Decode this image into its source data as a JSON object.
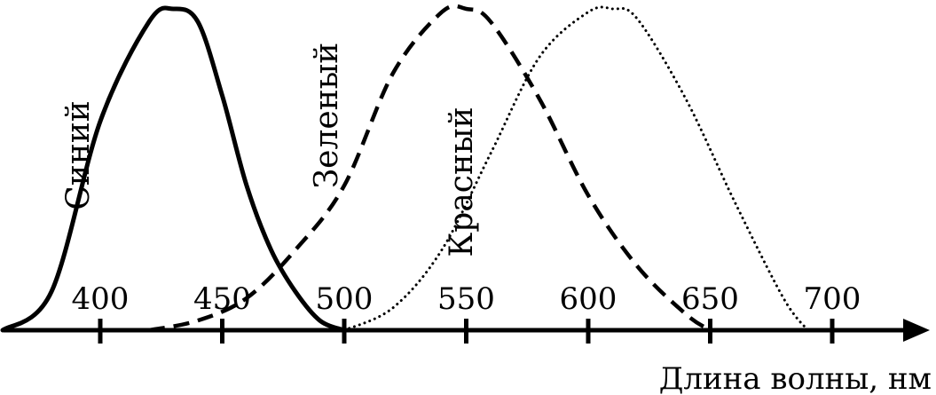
{
  "chart_data": {
    "type": "line",
    "title": "",
    "xlabel": "Длина волны, нм",
    "ylabel": "",
    "xticks": [
      400,
      450,
      500,
      550,
      600,
      650,
      700
    ],
    "xlim": [
      360,
      750
    ],
    "grid": false,
    "legend": "none",
    "series": [
      {
        "name": "Синий",
        "style": "solid",
        "color": "#000000",
        "x": [
          360,
          380,
          400,
          420,
          430,
          440,
          450,
          460,
          470,
          480,
          490,
          500
        ],
        "y": [
          0,
          0.12,
          0.65,
          0.96,
          1.0,
          0.96,
          0.73,
          0.45,
          0.25,
          0.12,
          0.03,
          0
        ]
      },
      {
        "name": "Зеленый",
        "style": "dashed",
        "color": "#000000",
        "x": [
          420,
          440,
          460,
          480,
          500,
          520,
          540,
          550,
          560,
          580,
          600,
          620,
          640,
          650
        ],
        "y": [
          0,
          0.03,
          0.1,
          0.25,
          0.45,
          0.8,
          0.99,
          1.0,
          0.96,
          0.72,
          0.42,
          0.2,
          0.05,
          0
        ]
      },
      {
        "name": "Красный",
        "style": "dotted",
        "color": "#000000",
        "x": [
          500,
          520,
          540,
          560,
          580,
          600,
          610,
          620,
          640,
          660,
          680,
          690
        ],
        "y": [
          0,
          0.07,
          0.25,
          0.55,
          0.85,
          0.99,
          1.0,
          0.97,
          0.72,
          0.4,
          0.1,
          0
        ]
      }
    ]
  }
}
